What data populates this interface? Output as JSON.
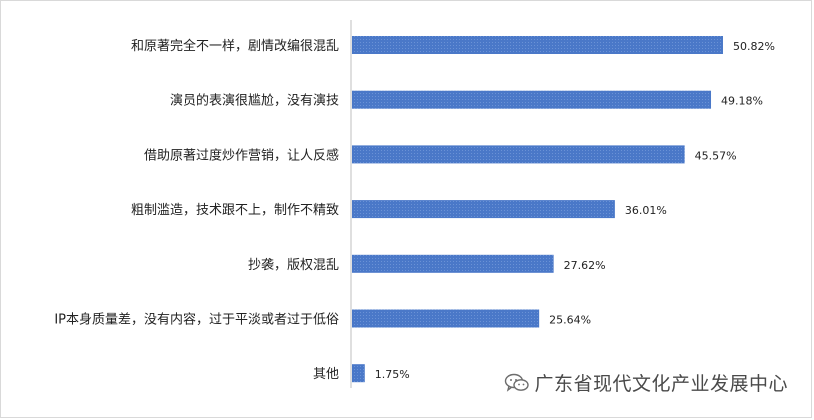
{
  "chart_data": {
    "type": "bar",
    "orientation": "horizontal",
    "categories": [
      "和原著完全不一样，剧情改编很混乱",
      "演员的表演很尴尬，没有演技",
      "借助原著过度炒作营销，让人反感",
      "粗制滥造，技术跟不上，制作不精致",
      "抄袭，版权混乱",
      "IP本身质量差，没有内容，过于平淡或者过于低俗",
      "其他"
    ],
    "values": [
      50.82,
      49.18,
      45.57,
      36.01,
      27.62,
      25.64,
      1.75
    ],
    "value_labels": [
      "50.82%",
      "49.18%",
      "45.57%",
      "36.01%",
      "27.62%",
      "25.64%",
      "1.75%"
    ],
    "xlim": [
      0,
      100
    ],
    "grid": false,
    "legend": "none",
    "bar_color": "#4472c4"
  },
  "watermark": {
    "icon": "wechat-icon",
    "text": "广东省现代文化产业发展中心"
  }
}
